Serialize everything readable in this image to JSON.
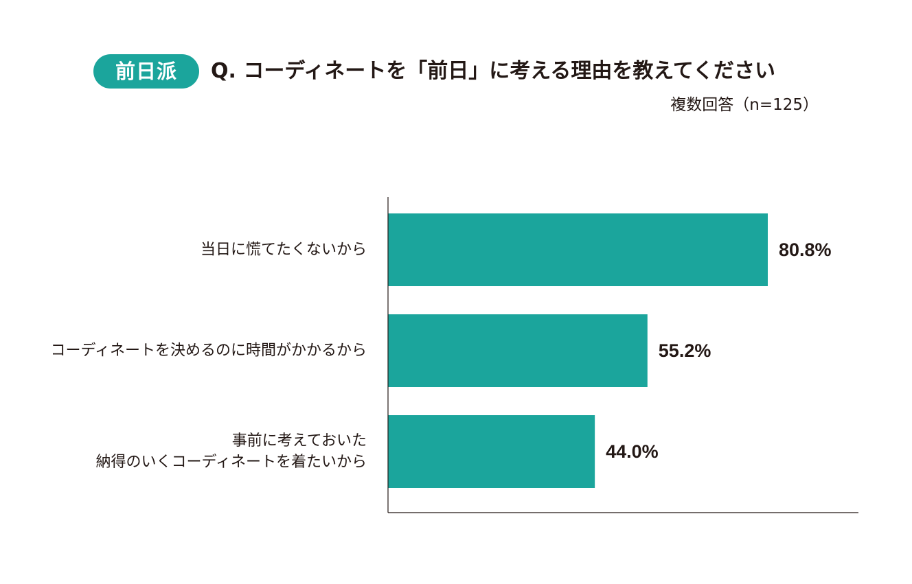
{
  "header": {
    "badge": "前日派",
    "title": "Q. コーディネートを「前日」に考える理由を教えてください",
    "subtitle": "複数回答（n=125）"
  },
  "colors": {
    "accent": "#1ba59c",
    "axis": "#231815",
    "text": "#231815"
  },
  "chart_data": {
    "type": "bar",
    "orientation": "horizontal",
    "categories": [
      [
        "当日に慌てたくないから"
      ],
      [
        "コーディネートを決めるのに時間がかかるから"
      ],
      [
        "事前に考えておいた",
        "納得のいくコーディネートを着たいから"
      ]
    ],
    "values": [
      80.8,
      55.2,
      44.0
    ],
    "value_labels": [
      "80.8%",
      "55.2%",
      "44.0%"
    ],
    "xlim": [
      0,
      100
    ],
    "grid": false,
    "legend": "none"
  }
}
